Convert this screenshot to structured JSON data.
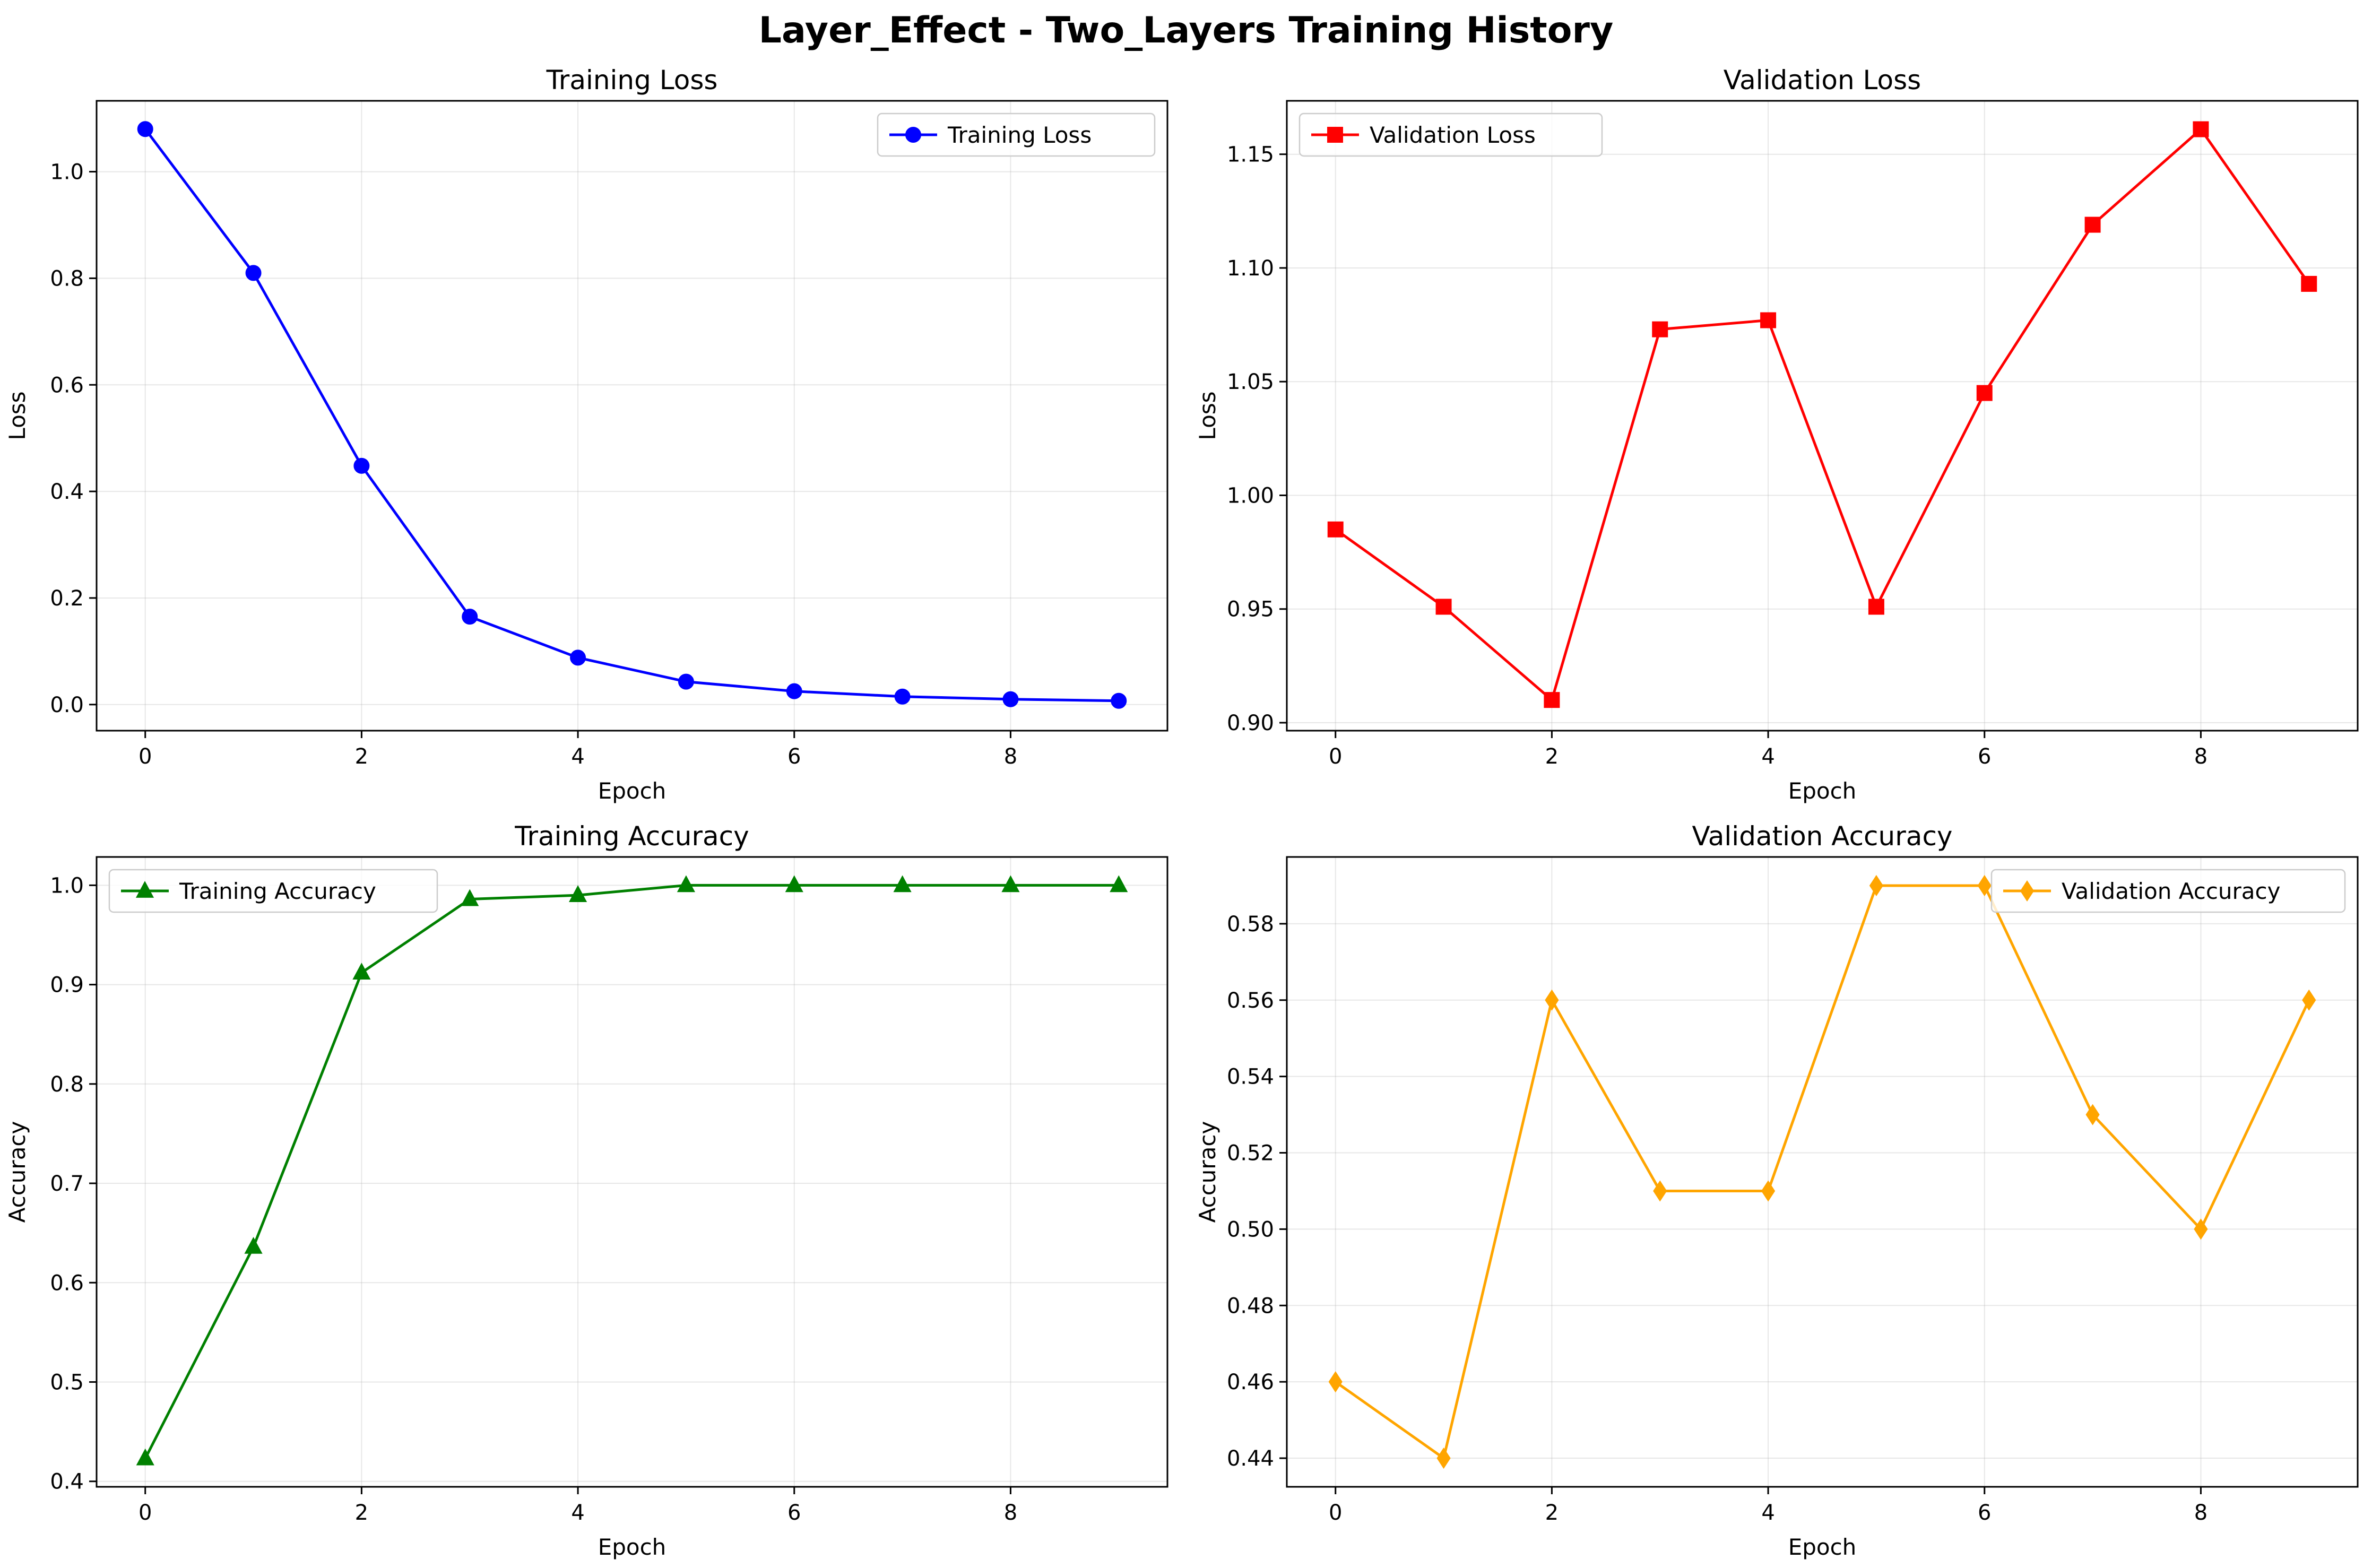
{
  "figure_title": "Layer_Effect - Two_Layers Training History",
  "chart_data": [
    {
      "id": "training-loss",
      "type": "line",
      "title": "Training Loss",
      "xlabel": "Epoch",
      "ylabel": "Loss",
      "x": [
        0,
        1,
        2,
        3,
        4,
        5,
        6,
        7,
        8,
        9
      ],
      "xlim": [
        -0.45,
        9.45
      ],
      "ylim": [
        -0.049,
        1.133
      ],
      "xticks": [
        0,
        2,
        4,
        6,
        8
      ],
      "yticks": [
        0.0,
        0.2,
        0.4,
        0.6,
        0.8,
        1.0
      ],
      "ytick_labels": [
        "0.0",
        "0.2",
        "0.4",
        "0.6",
        "0.8",
        "1.0"
      ],
      "legend_position": "upper right",
      "grid": true,
      "series": [
        {
          "name": "Training Loss",
          "color": "#0000ff",
          "marker": "circle",
          "values": [
            1.08,
            0.81,
            0.448,
            0.165,
            0.088,
            0.043,
            0.025,
            0.015,
            0.01,
            0.007
          ]
        }
      ]
    },
    {
      "id": "validation-loss",
      "type": "line",
      "title": "Validation Loss",
      "xlabel": "Epoch",
      "ylabel": "Loss",
      "x": [
        0,
        1,
        2,
        3,
        4,
        5,
        6,
        7,
        8,
        9
      ],
      "xlim": [
        -0.45,
        9.45
      ],
      "ylim": [
        0.8965,
        1.1735
      ],
      "xticks": [
        0,
        2,
        4,
        6,
        8
      ],
      "yticks": [
        0.9,
        0.95,
        1.0,
        1.05,
        1.1,
        1.15
      ],
      "ytick_labels": [
        "0.90",
        "0.95",
        "1.00",
        "1.05",
        "1.10",
        "1.15"
      ],
      "legend_position": "upper left",
      "grid": true,
      "series": [
        {
          "name": "Validation Loss",
          "color": "#ff0000",
          "marker": "square",
          "values": [
            0.985,
            0.951,
            0.91,
            1.073,
            1.077,
            0.951,
            1.045,
            1.119,
            1.161,
            1.093
          ]
        }
      ]
    },
    {
      "id": "training-accuracy",
      "type": "line",
      "title": "Training Accuracy",
      "xlabel": "Epoch",
      "ylabel": "Accuracy",
      "x": [
        0,
        1,
        2,
        3,
        4,
        5,
        6,
        7,
        8,
        9
      ],
      "xlim": [
        -0.45,
        9.45
      ],
      "ylim": [
        0.3945,
        1.0285
      ],
      "xticks": [
        0,
        2,
        4,
        6,
        8
      ],
      "yticks": [
        0.4,
        0.5,
        0.6,
        0.7,
        0.8,
        0.9,
        1.0
      ],
      "ytick_labels": [
        "0.4",
        "0.5",
        "0.6",
        "0.7",
        "0.8",
        "0.9",
        "1.0"
      ],
      "legend_position": "upper left",
      "grid": true,
      "series": [
        {
          "name": "Training Accuracy",
          "color": "#008000",
          "marker": "triangle",
          "values": [
            0.423,
            0.636,
            0.912,
            0.986,
            0.99,
            1.0,
            1.0,
            1.0,
            1.0,
            1.0
          ]
        }
      ]
    },
    {
      "id": "validation-accuracy",
      "type": "line",
      "title": "Validation Accuracy",
      "xlabel": "Epoch",
      "ylabel": "Accuracy",
      "x": [
        0,
        1,
        2,
        3,
        4,
        5,
        6,
        7,
        8,
        9
      ],
      "xlim": [
        -0.45,
        9.45
      ],
      "ylim": [
        0.4325,
        0.5975
      ],
      "xticks": [
        0,
        2,
        4,
        6,
        8
      ],
      "yticks": [
        0.44,
        0.46,
        0.48,
        0.5,
        0.52,
        0.54,
        0.56,
        0.58
      ],
      "ytick_labels": [
        "0.44",
        "0.46",
        "0.48",
        "0.50",
        "0.52",
        "0.54",
        "0.56",
        "0.58"
      ],
      "legend_position": "upper right",
      "grid": true,
      "series": [
        {
          "name": "Validation Accuracy",
          "color": "#ffa500",
          "marker": "diamond",
          "values": [
            0.46,
            0.44,
            0.56,
            0.51,
            0.51,
            0.59,
            0.59,
            0.53,
            0.5,
            0.56
          ]
        }
      ]
    }
  ]
}
